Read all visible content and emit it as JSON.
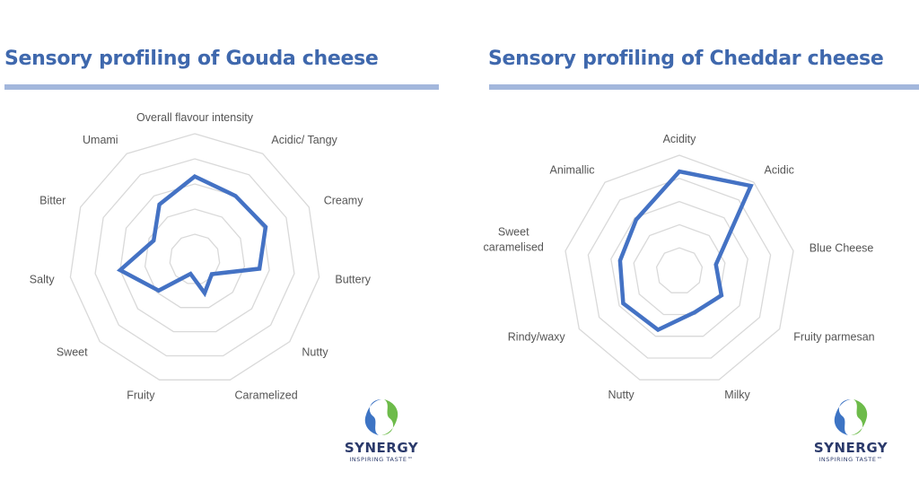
{
  "left_panel": {
    "title": "Sensory profiling of Gouda cheese"
  },
  "right_panel": {
    "title": "Sensory profiling of Cheddar cheese"
  },
  "logo": {
    "brand": "SYNERGY",
    "registered": "®",
    "tagline": "INSPIRING TASTE™"
  },
  "colors": {
    "title": "#3f68ad",
    "rule": "#a3b7dc",
    "series": "#4472c4",
    "grid": "#d9d9d9",
    "label": "#555555"
  },
  "chart_data": [
    {
      "type": "radar",
      "title": "Sensory profiling of Gouda cheese",
      "categories": [
        "Overall flavour intensity",
        "Acidic/ Tangy",
        "Creamy",
        "Buttery",
        "Nutty",
        "Caramelized",
        "Fruity",
        "Sweet",
        "Salty",
        "Bitter",
        "Umami"
      ],
      "note": "11 visible axis labels; 12 spokes drawn (one at top for Overall)",
      "series": [
        {
          "name": "Gouda",
          "values": [
            3.3,
            3.0,
            3.1,
            2.6,
            0.9,
            1.4,
            0.6,
            1.9,
            3.0,
            1.8,
            2.6
          ]
        }
      ],
      "rlim": [
        0,
        5
      ],
      "rings": 5,
      "grid": true,
      "legend": "none"
    },
    {
      "type": "radar",
      "title": "Sensory profiling of Cheddar cheese",
      "categories": [
        "Acidity",
        "Acidic",
        "Blue Cheese",
        "Fruity parmesan",
        "Milky",
        "Nutty",
        "Rindy/waxy",
        "Sweet caramelised",
        "Animallic"
      ],
      "series": [
        {
          "name": "Cheddar",
          "values": [
            4.3,
            4.8,
            1.6,
            2.1,
            1.9,
            2.7,
            2.8,
            2.6,
            2.9
          ]
        }
      ],
      "rlim": [
        0,
        5
      ],
      "rings": 5,
      "grid": true,
      "legend": "none"
    }
  ]
}
